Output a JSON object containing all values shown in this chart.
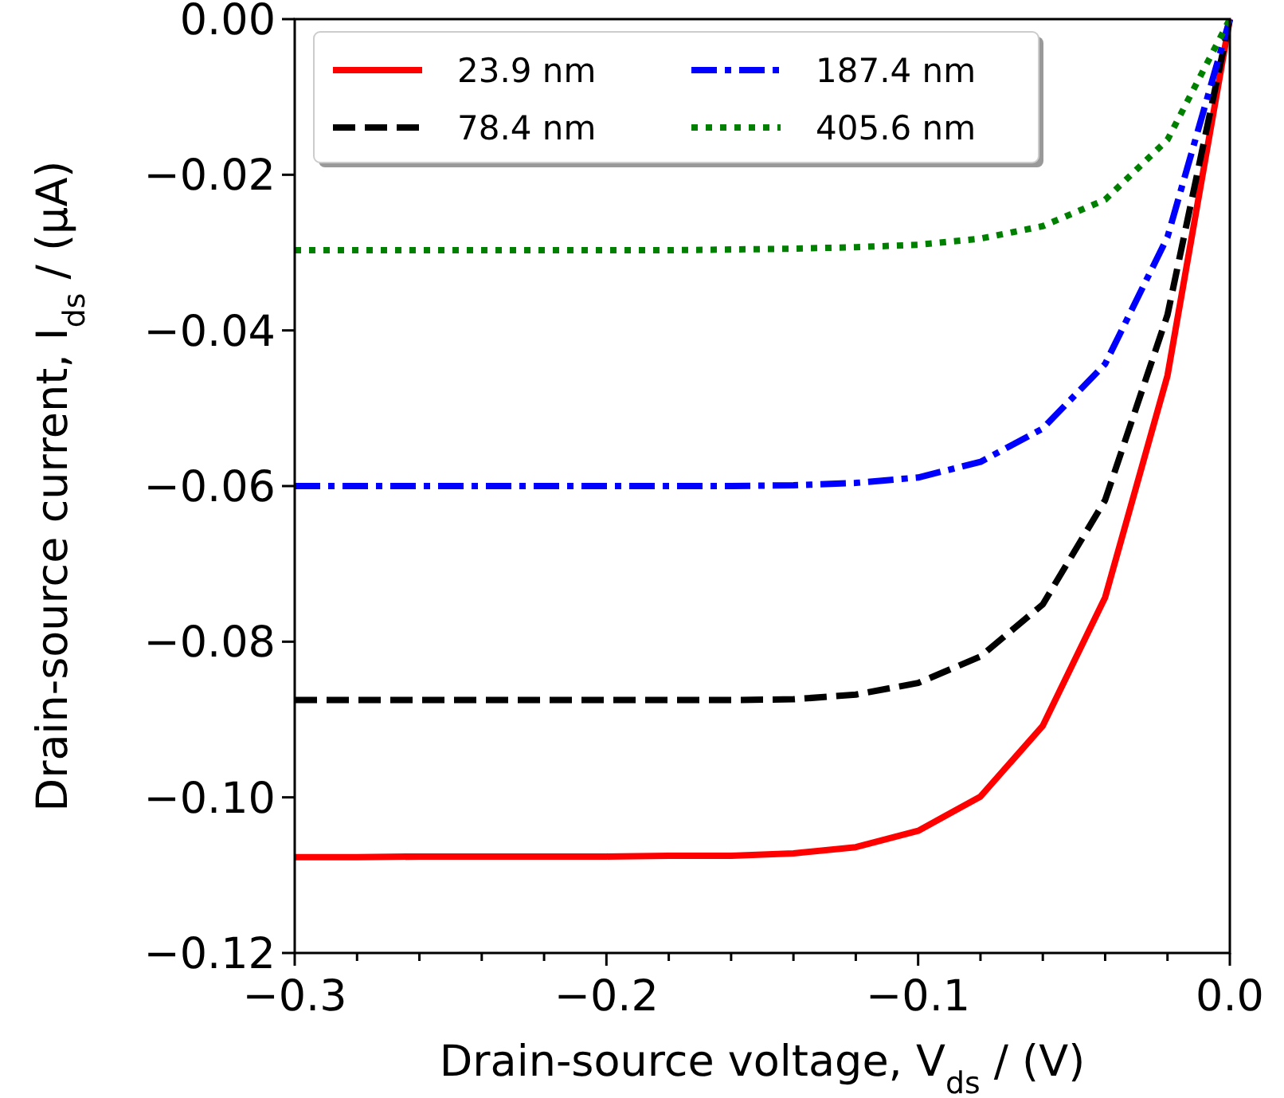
{
  "chart_data": {
    "type": "line",
    "xlabel": "Drain-source voltage, V$_{ds}$ / (V)",
    "ylabel": "Drain-source current, I$_{ds}$ / (μA)",
    "x": [
      -0.3,
      -0.28,
      -0.26,
      -0.24,
      -0.22,
      -0.2,
      -0.18,
      -0.16,
      -0.14,
      -0.12,
      -0.1,
      -0.08,
      -0.06,
      -0.04,
      -0.02,
      0
    ],
    "series": [
      {
        "name": "23.9 nm",
        "color": "#ff0000",
        "line_style": "solid",
        "values": [
          -0.1077,
          -0.1077,
          -0.1076,
          -0.1076,
          -0.1076,
          -0.1076,
          -0.1075,
          -0.1075,
          -0.1072,
          -0.1064,
          -0.1043,
          -0.0999,
          -0.0908,
          -0.0743,
          -0.0458,
          0
        ]
      },
      {
        "name": "78.4 nm",
        "color": "#000000",
        "line_style": "dashed",
        "values": [
          -0.0875,
          -0.0875,
          -0.0875,
          -0.0875,
          -0.0875,
          -0.0875,
          -0.0875,
          -0.0875,
          -0.0874,
          -0.0868,
          -0.0853,
          -0.0819,
          -0.0752,
          -0.0618,
          -0.038,
          0
        ]
      },
      {
        "name": "187.4 nm",
        "color": "#0000ff",
        "line_style": "dashdot",
        "values": [
          -0.06,
          -0.06,
          -0.06,
          -0.06,
          -0.06,
          -0.06,
          -0.06,
          -0.06,
          -0.0599,
          -0.0596,
          -0.0589,
          -0.0569,
          -0.0526,
          -0.0443,
          -0.028,
          0
        ]
      },
      {
        "name": "405.6 nm",
        "color": "#008000",
        "line_style": "dotted",
        "values": [
          -0.0297,
          -0.0297,
          -0.0297,
          -0.0297,
          -0.0297,
          -0.0297,
          -0.0297,
          -0.0296,
          -0.0295,
          -0.0293,
          -0.029,
          -0.0282,
          -0.0266,
          -0.0232,
          -0.0155,
          0
        ]
      }
    ],
    "xlim": [
      -0.3,
      0
    ],
    "ylim": [
      -0.12,
      0
    ],
    "xticks": [
      {
        "value": -0.3,
        "label": "−0.3"
      },
      {
        "value": -0.28,
        "label": null
      },
      {
        "value": -0.26,
        "label": null
      },
      {
        "value": -0.24,
        "label": null
      },
      {
        "value": -0.22,
        "label": null
      },
      {
        "value": -0.2,
        "label": "−0.2"
      },
      {
        "value": -0.18,
        "label": null
      },
      {
        "value": -0.16,
        "label": null
      },
      {
        "value": -0.14,
        "label": null
      },
      {
        "value": -0.12,
        "label": null
      },
      {
        "value": -0.1,
        "label": "−0.1"
      },
      {
        "value": -0.08,
        "label": null
      },
      {
        "value": -0.06,
        "label": null
      },
      {
        "value": -0.04,
        "label": null
      },
      {
        "value": -0.02,
        "label": null
      },
      {
        "value": 0,
        "label": "0.0"
      }
    ],
    "yticks": [
      {
        "value": -0.12,
        "label": "−0.12"
      },
      {
        "value": -0.1,
        "label": "−0.10"
      },
      {
        "value": -0.08,
        "label": "−0.08"
      },
      {
        "value": -0.06,
        "label": "−0.06"
      },
      {
        "value": -0.04,
        "label": "−0.04"
      },
      {
        "value": -0.02,
        "label": "−0.02"
      },
      {
        "value": 0,
        "label": "0.00"
      }
    ],
    "grid": false,
    "legend": "top left",
    "marker": "none"
  }
}
